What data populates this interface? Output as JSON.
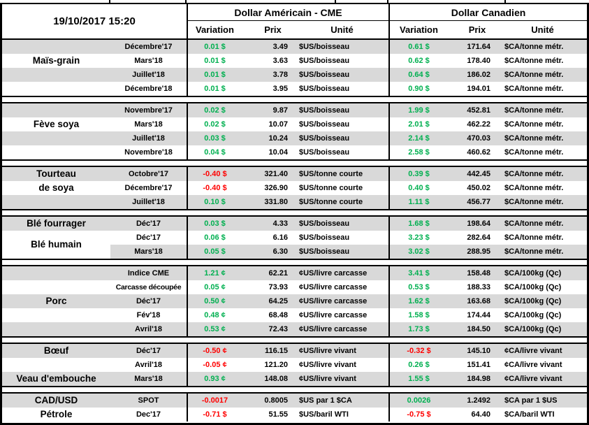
{
  "title": {
    "timestamp": "19/10/2017 15:20"
  },
  "header": {
    "us_title": "Dollar Américain - CME",
    "ca_title": "Dollar Canadien",
    "columns": {
      "variation": "Variation",
      "prix": "Prix",
      "unite": "Unité"
    }
  },
  "colors": {
    "positive": "#00B050",
    "negative": "#FF0000",
    "stripe": "#D9D9D9",
    "grid": "#000000"
  },
  "sections": [
    {
      "id": "mais-grain",
      "rows": [
        {
          "shade": true,
          "label": "",
          "contract": "Décembre'17",
          "us": {
            "var": "0.01 $",
            "dir": "positive",
            "prix": "3.49",
            "unit": "$US/boisseau"
          },
          "ca": {
            "var": "0.61 $",
            "dir": "positive",
            "prix": "171.64",
            "unit": "$CA/tonne métr."
          }
        },
        {
          "shade": false,
          "label": "Maïs-grain",
          "contract": "Mars'18",
          "us": {
            "var": "0.01 $",
            "dir": "positive",
            "prix": "3.63",
            "unit": "$US/boisseau"
          },
          "ca": {
            "var": "0.62 $",
            "dir": "positive",
            "prix": "178.40",
            "unit": "$CA/tonne métr."
          }
        },
        {
          "shade": true,
          "label": "",
          "contract": "Juillet'18",
          "us": {
            "var": "0.01 $",
            "dir": "positive",
            "prix": "3.78",
            "unit": "$US/boisseau"
          },
          "ca": {
            "var": "0.64 $",
            "dir": "positive",
            "prix": "186.02",
            "unit": "$CA/tonne métr."
          }
        },
        {
          "shade": false,
          "label": "",
          "contract": "Décembre'18",
          "us": {
            "var": "0.01 $",
            "dir": "positive",
            "prix": "3.95",
            "unit": "$US/boisseau"
          },
          "ca": {
            "var": "0.90 $",
            "dir": "positive",
            "prix": "194.01",
            "unit": "$CA/tonne métr."
          }
        }
      ]
    },
    {
      "id": "feve-soya",
      "rows": [
        {
          "shade": true,
          "label": "",
          "contract": "Novembre'17",
          "us": {
            "var": "0.02 $",
            "dir": "positive",
            "prix": "9.87",
            "unit": "$US/boisseau"
          },
          "ca": {
            "var": "1.99 $",
            "dir": "positive",
            "prix": "452.81",
            "unit": "$CA/tonne métr."
          }
        },
        {
          "shade": false,
          "label": "Fève soya",
          "contract": "Mars'18",
          "us": {
            "var": "0.02 $",
            "dir": "positive",
            "prix": "10.07",
            "unit": "$US/boisseau"
          },
          "ca": {
            "var": "2.01 $",
            "dir": "positive",
            "prix": "462.22",
            "unit": "$CA/tonne métr."
          }
        },
        {
          "shade": true,
          "label": "",
          "contract": "Juillet'18",
          "us": {
            "var": "0.03 $",
            "dir": "positive",
            "prix": "10.24",
            "unit": "$US/boisseau"
          },
          "ca": {
            "var": "2.14 $",
            "dir": "positive",
            "prix": "470.03",
            "unit": "$CA/tonne métr."
          }
        },
        {
          "shade": false,
          "label": "",
          "contract": "Novembre'18",
          "us": {
            "var": "0.04 $",
            "dir": "positive",
            "prix": "10.04",
            "unit": "$US/boisseau"
          },
          "ca": {
            "var": "2.58 $",
            "dir": "positive",
            "prix": "460.62",
            "unit": "$CA/tonne métr."
          }
        }
      ]
    },
    {
      "id": "tourteau-de-soya",
      "rows": [
        {
          "shade": true,
          "label": "Tourteau",
          "contract": "Octobre'17",
          "us": {
            "var": "-0.40 $",
            "dir": "negative",
            "prix": "321.40",
            "unit": "$US/tonne courte"
          },
          "ca": {
            "var": "0.39 $",
            "dir": "positive",
            "prix": "442.45",
            "unit": "$CA/tonne métr."
          }
        },
        {
          "shade": false,
          "label": "de soya",
          "contract": "Décembre'17",
          "us": {
            "var": "-0.40 $",
            "dir": "negative",
            "prix": "326.90",
            "unit": "$US/tonne courte"
          },
          "ca": {
            "var": "0.40 $",
            "dir": "positive",
            "prix": "450.02",
            "unit": "$CA/tonne métr."
          }
        },
        {
          "shade": true,
          "label": "",
          "contract": "Juillet'18",
          "us": {
            "var": "0.10 $",
            "dir": "positive",
            "prix": "331.80",
            "unit": "$US/tonne courte"
          },
          "ca": {
            "var": "1.11 $",
            "dir": "positive",
            "prix": "456.77",
            "unit": "$CA/tonne métr."
          }
        }
      ]
    },
    {
      "id": "ble",
      "rows": [
        {
          "shade": true,
          "label": "Blé fourrager",
          "contract": "Déc'17",
          "us": {
            "var": "0.03 $",
            "dir": "positive",
            "prix": "4.33",
            "unit": "$US/boisseau"
          },
          "ca": {
            "var": "1.68 $",
            "dir": "positive",
            "prix": "198.64",
            "unit": "$CA/tonne métr."
          }
        },
        {
          "shade": false,
          "label": "Blé humain",
          "label_shift": true,
          "contract": "Déc'17",
          "us": {
            "var": "0.06 $",
            "dir": "positive",
            "prix": "6.16",
            "unit": "$US/boisseau"
          },
          "ca": {
            "var": "3.23 $",
            "dir": "positive",
            "prix": "282.64",
            "unit": "$CA/tonne métr."
          }
        },
        {
          "shade": true,
          "label": "",
          "label_bg": "white",
          "contract": "Mars'18",
          "us": {
            "var": "0.05 $",
            "dir": "positive",
            "prix": "6.30",
            "unit": "$US/boisseau"
          },
          "ca": {
            "var": "3.02 $",
            "dir": "positive",
            "prix": "288.95",
            "unit": "$CA/tonne métr."
          }
        }
      ]
    },
    {
      "id": "porc",
      "rows": [
        {
          "shade": true,
          "label": "",
          "contract": "Indice CME",
          "us": {
            "var": "1.21 ¢",
            "dir": "positive",
            "prix": "62.21",
            "unit": "¢US/livre carcasse"
          },
          "ca": {
            "var": "3.41 $",
            "dir": "positive",
            "prix": "158.48",
            "unit": "$CA/100kg (Qc)"
          }
        },
        {
          "shade": false,
          "label": "",
          "contract": "Carcasse découpée",
          "contract_small": true,
          "us": {
            "var": "0.05 ¢",
            "dir": "positive",
            "prix": "73.93",
            "unit": "¢US/livre carcasse"
          },
          "ca": {
            "var": "0.53 $",
            "dir": "positive",
            "prix": "188.33",
            "unit": "$CA/100kg (Qc)"
          }
        },
        {
          "shade": true,
          "label": "Porc",
          "contract": "Déc'17",
          "us": {
            "var": "0.50 ¢",
            "dir": "positive",
            "prix": "64.25",
            "unit": "¢US/livre carcasse"
          },
          "ca": {
            "var": "1.62 $",
            "dir": "positive",
            "prix": "163.68",
            "unit": "$CA/100kg (Qc)"
          }
        },
        {
          "shade": false,
          "label": "",
          "contract": "Fév'18",
          "us": {
            "var": "0.48 ¢",
            "dir": "positive",
            "prix": "68.48",
            "unit": "¢US/livre carcasse"
          },
          "ca": {
            "var": "1.58 $",
            "dir": "positive",
            "prix": "174.44",
            "unit": "$CA/100kg (Qc)"
          }
        },
        {
          "shade": true,
          "label": "",
          "contract": "Avril'18",
          "us": {
            "var": "0.53 ¢",
            "dir": "positive",
            "prix": "72.43",
            "unit": "¢US/livre carcasse"
          },
          "ca": {
            "var": "1.73 $",
            "dir": "positive",
            "prix": "184.50",
            "unit": "$CA/100kg (Qc)"
          }
        }
      ]
    },
    {
      "id": "boeuf-veau",
      "rows": [
        {
          "shade": true,
          "label": "Bœuf",
          "contract": "Déc'17",
          "us": {
            "var": "-0.50 ¢",
            "dir": "negative",
            "prix": "116.15",
            "unit": "¢US/livre vivant"
          },
          "ca": {
            "var": "-0.32 $",
            "dir": "negative",
            "prix": "145.10",
            "unit": "¢CA/livre vivant"
          }
        },
        {
          "shade": false,
          "label": "",
          "contract": "Avril'18",
          "us": {
            "var": "-0.05 ¢",
            "dir": "negative",
            "prix": "121.20",
            "unit": "¢US/livre vivant"
          },
          "ca": {
            "var": "0.26 $",
            "dir": "positive",
            "prix": "151.41",
            "unit": "¢CA/livre vivant"
          }
        },
        {
          "shade": true,
          "label": "Veau d'embouche",
          "contract": "Mars'18",
          "us": {
            "var": "0.93 ¢",
            "dir": "positive",
            "prix": "148.08",
            "unit": "¢US/livre vivant"
          },
          "ca": {
            "var": "1.55 $",
            "dir": "positive",
            "prix": "184.98",
            "unit": "¢CA/livre vivant"
          }
        }
      ]
    },
    {
      "id": "cad-petrole",
      "rows": [
        {
          "shade": true,
          "label": "CAD/USD",
          "contract": "SPOT",
          "us": {
            "var": "-0.0017",
            "dir": "negative",
            "prix": "0.8005",
            "unit": "$US par 1 $CA"
          },
          "ca": {
            "var": "0.0026",
            "dir": "positive",
            "prix": "1.2492",
            "unit": "$CA par 1 $US"
          }
        },
        {
          "shade": false,
          "label": "Pétrole",
          "contract": "Dec'17",
          "us": {
            "var": "-0.71 $",
            "dir": "negative",
            "prix": "51.55",
            "unit": "$US/baril WTI"
          },
          "ca": {
            "var": "-0.75 $",
            "dir": "negative",
            "prix": "64.40",
            "unit": "$CA/baril WTI"
          }
        }
      ]
    }
  ]
}
